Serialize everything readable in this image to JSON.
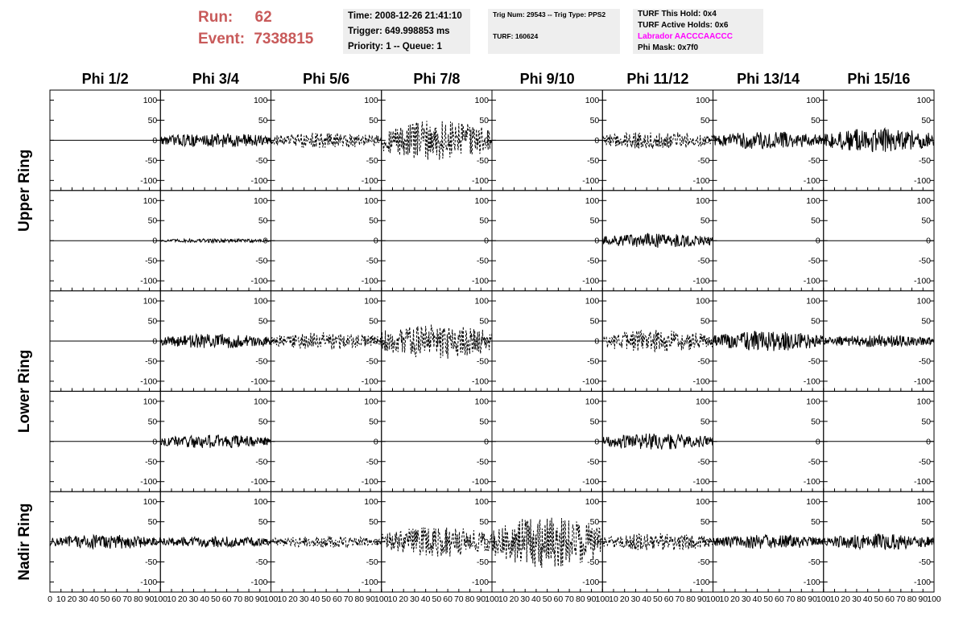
{
  "header": {
    "run_label": "Run:",
    "run_value": "62",
    "event_label": "Event:",
    "event_value": "7338815",
    "time": "Time: 2008-12-26 21:41:10",
    "trigger": "Trigger: 649.998853 ms",
    "priority": "Priority: 1 -- Queue: 1",
    "trig_num": "Trig Num: 29543 -- Trig Type: PPS2",
    "turf": "TURF: 160624",
    "turf_this_hold": "TURF This Hold: 0x4",
    "turf_active_holds": "TURF Active Holds: 0x6",
    "labrador": "Labrador AACCCAACCC",
    "phi_mask": "Phi Mask: 0x7f0",
    "labrador_color": "#ff00ff",
    "run_color": "#c85a5a"
  },
  "chart_data": {
    "type": "line",
    "columns": [
      "Phi 1/2",
      "Phi 3/4",
      "Phi 5/6",
      "Phi 7/8",
      "Phi 9/10",
      "Phi 11/12",
      "Phi 13/14",
      "Phi 15/16"
    ],
    "rows": [
      "Upper Ring",
      "Lower Ring",
      "Nadir Ring"
    ],
    "ylim": [
      -125,
      125
    ],
    "yticks": [
      -100,
      -50,
      0,
      50,
      100
    ],
    "xlim": [
      0,
      100
    ],
    "xticks": [
      0,
      10,
      20,
      30,
      40,
      50,
      60,
      70,
      80,
      90,
      100
    ],
    "x_tick_labels": [
      "0",
      "10",
      "20",
      "30",
      "40",
      "50",
      "60",
      "70",
      "80",
      "90",
      "100"
    ],
    "panels": [
      [
        {
          "amp": 0,
          "style": "solid"
        },
        {
          "amp": 18,
          "style": "solid"
        },
        {
          "amp": 20,
          "style": "dashed"
        },
        {
          "amp": 50,
          "style": "dashed"
        },
        {
          "amp": 0,
          "style": "solid"
        },
        {
          "amp": 22,
          "style": "dashed"
        },
        {
          "amp": 22,
          "style": "solid"
        },
        {
          "amp": 30,
          "style": "solid"
        }
      ],
      [
        {
          "amp": 0,
          "style": "solid"
        },
        {
          "amp": 5,
          "style": "solid"
        },
        {
          "amp": 0,
          "style": "solid"
        },
        {
          "amp": 0,
          "style": "solid"
        },
        {
          "amp": 0,
          "style": "solid"
        },
        {
          "amp": 18,
          "style": "solid"
        },
        {
          "amp": 0,
          "style": "solid"
        },
        {
          "amp": 0,
          "style": "solid"
        }
      ],
      [
        {
          "amp": 0,
          "style": "solid"
        },
        {
          "amp": 18,
          "style": "solid"
        },
        {
          "amp": 22,
          "style": "dashed"
        },
        {
          "amp": 45,
          "style": "dashed"
        },
        {
          "amp": 0,
          "style": "solid"
        },
        {
          "amp": 28,
          "style": "dashed"
        },
        {
          "amp": 25,
          "style": "solid"
        },
        {
          "amp": 15,
          "style": "solid"
        }
      ],
      [
        {
          "amp": 0,
          "style": "solid"
        },
        {
          "amp": 17,
          "style": "solid"
        },
        {
          "amp": 0,
          "style": "solid"
        },
        {
          "amp": 0,
          "style": "solid"
        },
        {
          "amp": 0,
          "style": "solid"
        },
        {
          "amp": 20,
          "style": "solid"
        },
        {
          "amp": 0,
          "style": "solid"
        },
        {
          "amp": 0,
          "style": "solid"
        }
      ],
      [
        {
          "amp": 18,
          "style": "solid"
        },
        {
          "amp": 14,
          "style": "solid"
        },
        {
          "amp": 15,
          "style": "dashed"
        },
        {
          "amp": 38,
          "style": "dashed"
        },
        {
          "amp": 65,
          "style": "dashed"
        },
        {
          "amp": 22,
          "style": "dashed"
        },
        {
          "amp": 18,
          "style": "solid"
        },
        {
          "amp": 20,
          "style": "solid"
        }
      ]
    ]
  }
}
